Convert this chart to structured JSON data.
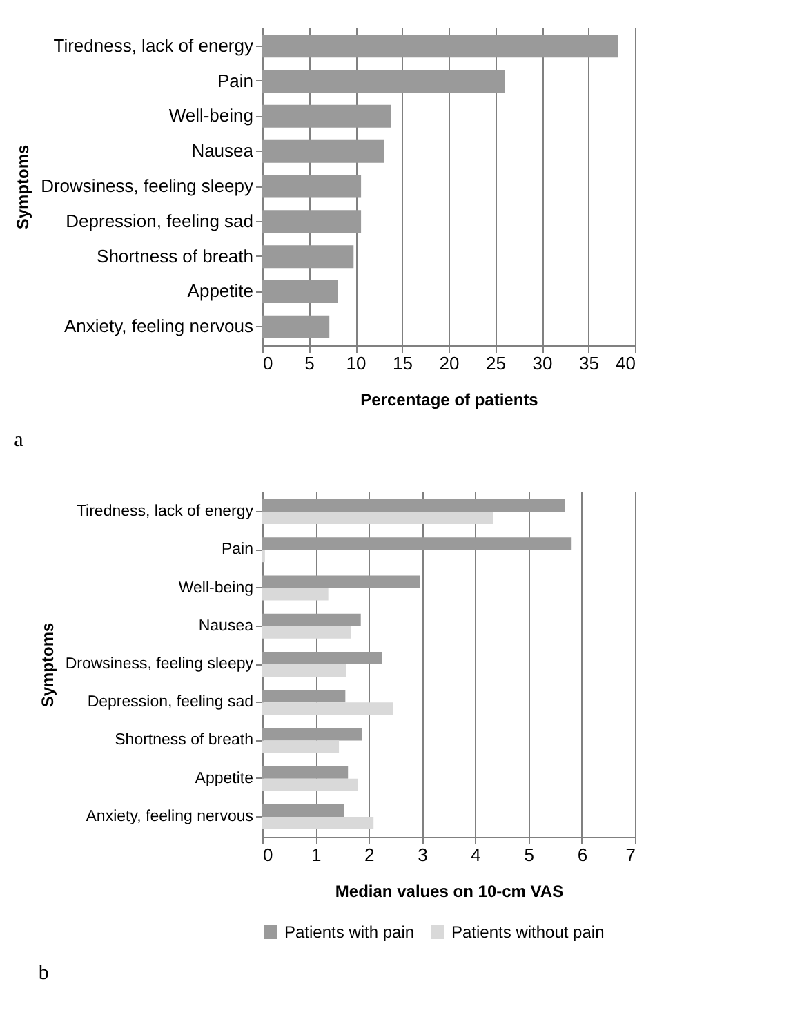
{
  "chart_data": [
    {
      "type": "bar",
      "orientation": "horizontal",
      "xlabel": "Percentage of patients",
      "ylabel": "Symptoms",
      "categories": [
        "Tiredness, lack of energy",
        "Pain",
        "Well-being",
        "Nausea",
        "Drowsiness, feeling sleepy",
        "Depression, feeling sad",
        "Shortness of breath",
        "Appetite",
        "Anxiety, feeling nervous"
      ],
      "values": [
        38.2,
        26.0,
        13.8,
        13.1,
        10.6,
        10.6,
        9.8,
        8.1,
        7.2
      ],
      "color": "#9a9a9a",
      "xlim": [
        0,
        40
      ],
      "xticks": [
        0,
        5,
        10,
        15,
        20,
        25,
        30,
        35,
        40
      ],
      "grid": "x",
      "legend": false,
      "annotations": [
        "a"
      ]
    },
    {
      "type": "bar",
      "orientation": "horizontal",
      "xlabel": "Median values  on 10-cm VAS",
      "ylabel": "Symptoms",
      "categories": [
        "Tiredness, lack of energy",
        "Pain",
        "Well-being",
        "Nausea",
        "Drowsiness, feeling sleepy",
        "Depression, feeling sad",
        "Shortness of breath",
        "Appetite",
        "Anxiety, feeling nervous"
      ],
      "series": [
        {
          "name": "Patients with pain",
          "color": "#9a9a9a",
          "values": [
            5.69,
            5.81,
            2.96,
            1.85,
            2.25,
            1.56,
            1.87,
            1.61,
            1.54
          ]
        },
        {
          "name": "Patients without pain",
          "color": "#d9d9d9",
          "values": [
            4.34,
            0.05,
            1.24,
            1.67,
            1.57,
            2.46,
            1.44,
            1.8,
            2.09
          ]
        }
      ],
      "xlim": [
        0,
        7
      ],
      "xticks": [
        0,
        1,
        2,
        3,
        4,
        5,
        6,
        7
      ],
      "grid": "x",
      "legend": "bottom",
      "annotations": [
        "b"
      ]
    }
  ]
}
